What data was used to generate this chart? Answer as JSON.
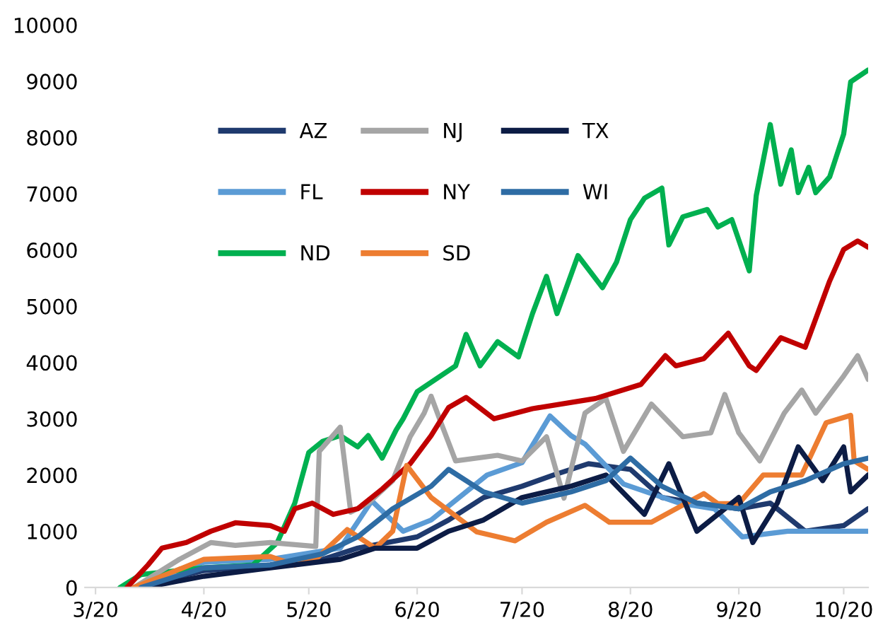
{
  "chart_data": {
    "type": "line",
    "xlim": [
      "2020-02-27",
      "2020-10-08"
    ],
    "ylim": [
      0,
      10000
    ],
    "xticks": [
      {
        "value": "2020-03-01",
        "label": "3/20"
      },
      {
        "value": "2020-04-01",
        "label": "4/20"
      },
      {
        "value": "2020-05-01",
        "label": "5/20"
      },
      {
        "value": "2020-06-01",
        "label": "6/20"
      },
      {
        "value": "2020-07-01",
        "label": "7/20"
      },
      {
        "value": "2020-08-01",
        "label": "8/20"
      },
      {
        "value": "2020-09-01",
        "label": "9/20"
      },
      {
        "value": "2020-10-01",
        "label": "10/20"
      }
    ],
    "yticks": [
      0,
      1000,
      2000,
      3000,
      4000,
      5000,
      6000,
      7000,
      8000,
      9000,
      10000
    ],
    "grid": false,
    "legend": "top left",
    "marker": "none",
    "line_style": "solid",
    "series": [
      {
        "name": "AZ",
        "color": "#1f3a6e",
        "x": [
          "2020-03-12",
          "2020-04-01",
          "2020-04-20",
          "2020-05-05",
          "2020-05-15",
          "2020-06-01",
          "2020-06-10",
          "2020-06-20",
          "2020-07-01",
          "2020-07-10",
          "2020-07-20",
          "2020-08-01",
          "2020-08-10",
          "2020-08-20",
          "2020-09-01",
          "2020-09-10",
          "2020-09-20",
          "2020-10-01",
          "2020-10-08"
        ],
        "values": [
          0,
          300,
          400,
          500,
          700,
          900,
          1200,
          1600,
          1800,
          2000,
          2200,
          2100,
          1600,
          1500,
          1400,
          1500,
          1000,
          1100,
          1400
        ]
      },
      {
        "name": "FL",
        "color": "#5b9bd5",
        "x": [
          "2020-03-12",
          "2020-04-01",
          "2020-04-20",
          "2020-05-10",
          "2020-05-19",
          "2020-05-28",
          "2020-06-05",
          "2020-06-21",
          "2020-07-01",
          "2020-07-09",
          "2020-07-15",
          "2020-07-19",
          "2020-07-30",
          "2020-08-15",
          "2020-08-25",
          "2020-09-02",
          "2020-09-15",
          "2020-10-01",
          "2020-10-08"
        ],
        "values": [
          0,
          450,
          500,
          700,
          1540,
          1000,
          1200,
          2000,
          2220,
          3050,
          2700,
          2550,
          1840,
          1500,
          1400,
          900,
          1000,
          1000,
          1000
        ]
      },
      {
        "name": "ND",
        "color": "#00b050",
        "x": [
          "2020-03-08",
          "2020-03-14",
          "2020-04-01",
          "2020-04-15",
          "2020-04-22",
          "2020-04-27",
          "2020-05-01",
          "2020-05-05",
          "2020-05-10",
          "2020-05-15",
          "2020-05-18",
          "2020-05-22",
          "2020-05-26",
          "2020-05-28",
          "2020-06-01",
          "2020-06-12",
          "2020-06-15",
          "2020-06-19",
          "2020-06-24",
          "2020-06-30",
          "2020-07-04",
          "2020-07-08",
          "2020-07-11",
          "2020-07-17",
          "2020-07-24",
          "2020-07-28",
          "2020-08-01",
          "2020-08-05",
          "2020-08-10",
          "2020-08-12",
          "2020-08-16",
          "2020-08-23",
          "2020-08-26",
          "2020-08-30",
          "2020-09-04",
          "2020-09-06",
          "2020-09-10",
          "2020-09-13",
          "2020-09-16",
          "2020-09-18",
          "2020-09-21",
          "2020-09-23",
          "2020-09-27",
          "2020-10-01",
          "2020-10-03",
          "2020-10-08"
        ],
        "values": [
          0,
          230,
          350,
          400,
          800,
          1500,
          2400,
          2600,
          2700,
          2500,
          2700,
          2300,
          2800,
          3000,
          3480,
          3940,
          4500,
          3940,
          4370,
          4100,
          4870,
          5530,
          4870,
          5900,
          5330,
          5780,
          6540,
          6920,
          7100,
          6090,
          6590,
          6720,
          6410,
          6540,
          5630,
          6970,
          8230,
          7170,
          7780,
          7020,
          7470,
          7020,
          7300,
          8060,
          8990,
          9200
        ]
      },
      {
        "name": "NJ",
        "color": "#a5a5a5",
        "x": [
          "2020-03-12",
          "2020-03-25",
          "2020-04-03",
          "2020-04-10",
          "2020-04-20",
          "2020-05-03",
          "2020-05-04",
          "2020-05-10",
          "2020-05-13",
          "2020-05-18",
          "2020-05-25",
          "2020-05-30",
          "2020-06-03",
          "2020-06-05",
          "2020-06-08",
          "2020-06-12",
          "2020-06-24",
          "2020-07-01",
          "2020-07-08",
          "2020-07-13",
          "2020-07-19",
          "2020-07-25",
          "2020-07-30",
          "2020-08-07",
          "2020-08-16",
          "2020-08-24",
          "2020-08-28",
          "2020-09-01",
          "2020-09-07",
          "2020-09-14",
          "2020-09-19",
          "2020-09-23",
          "2020-10-01",
          "2020-10-05",
          "2020-10-08"
        ],
        "values": [
          0,
          500,
          800,
          750,
          800,
          730,
          2420,
          2850,
          1340,
          1500,
          1900,
          2680,
          3100,
          3400,
          2900,
          2250,
          2350,
          2250,
          2680,
          1590,
          3100,
          3360,
          2420,
          3260,
          2680,
          2750,
          3430,
          2750,
          2250,
          3100,
          3510,
          3100,
          3760,
          4120,
          3700
        ]
      },
      {
        "name": "NY",
        "color": "#c00000",
        "x": [
          "2020-03-10",
          "2020-03-16",
          "2020-03-20",
          "2020-03-27",
          "2020-04-03",
          "2020-04-10",
          "2020-04-20",
          "2020-04-24",
          "2020-04-27",
          "2020-05-02",
          "2020-05-08",
          "2020-05-15",
          "2020-05-22",
          "2020-05-30",
          "2020-06-05",
          "2020-06-10",
          "2020-06-15",
          "2020-06-23",
          "2020-07-04",
          "2020-07-22",
          "2020-08-04",
          "2020-08-11",
          "2020-08-14",
          "2020-08-22",
          "2020-08-29",
          "2020-09-04",
          "2020-09-06",
          "2020-09-13",
          "2020-09-20",
          "2020-09-27",
          "2020-10-01",
          "2020-10-05",
          "2020-10-08"
        ],
        "values": [
          0,
          400,
          700,
          800,
          1000,
          1150,
          1100,
          1000,
          1400,
          1500,
          1300,
          1400,
          1750,
          2200,
          2700,
          3200,
          3380,
          3000,
          3180,
          3360,
          3610,
          4120,
          3940,
          4070,
          4520,
          3940,
          3860,
          4440,
          4270,
          5450,
          6010,
          6160,
          6050
        ]
      },
      {
        "name": "SD",
        "color": "#ed7d31",
        "x": [
          "2020-03-12",
          "2020-04-01",
          "2020-04-20",
          "2020-04-27",
          "2020-05-03",
          "2020-05-12",
          "2020-05-20",
          "2020-05-25",
          "2020-05-29",
          "2020-06-05",
          "2020-06-18",
          "2020-06-29",
          "2020-07-08",
          "2020-07-19",
          "2020-07-26",
          "2020-08-07",
          "2020-08-22",
          "2020-08-26",
          "2020-09-01",
          "2020-09-08",
          "2020-09-19",
          "2020-09-26",
          "2020-10-03",
          "2020-10-04",
          "2020-10-08"
        ],
        "values": [
          0,
          500,
          550,
          400,
          500,
          1030,
          700,
          1000,
          2170,
          1600,
          990,
          830,
          1160,
          1460,
          1160,
          1160,
          1670,
          1490,
          1490,
          2000,
          2000,
          2930,
          3060,
          2250,
          2100
        ]
      },
      {
        "name": "TX",
        "color": "#0c1c45",
        "x": [
          "2020-03-15",
          "2020-04-01",
          "2020-04-20",
          "2020-05-10",
          "2020-05-20",
          "2020-06-01",
          "2020-06-10",
          "2020-06-20",
          "2020-07-01",
          "2020-07-15",
          "2020-07-25",
          "2020-08-05",
          "2020-08-12",
          "2020-08-20",
          "2020-09-01",
          "2020-09-05",
          "2020-09-12",
          "2020-09-18",
          "2020-09-25",
          "2020-10-01",
          "2020-10-03",
          "2020-10-08"
        ],
        "values": [
          0,
          200,
          350,
          500,
          700,
          700,
          1000,
          1200,
          1600,
          1800,
          2000,
          1300,
          2200,
          1000,
          1600,
          800,
          1500,
          2500,
          1900,
          2500,
          1700,
          2000
        ]
      },
      {
        "name": "WI",
        "color": "#2e6ca4",
        "x": [
          "2020-03-14",
          "2020-04-01",
          "2020-04-20",
          "2020-05-05",
          "2020-05-15",
          "2020-05-25",
          "2020-06-05",
          "2020-06-10",
          "2020-06-20",
          "2020-07-01",
          "2020-07-15",
          "2020-07-25",
          "2020-08-01",
          "2020-08-10",
          "2020-08-20",
          "2020-09-01",
          "2020-09-10",
          "2020-09-20",
          "2020-10-01",
          "2020-10-08"
        ],
        "values": [
          0,
          350,
          400,
          600,
          900,
          1400,
          1800,
          2100,
          1700,
          1500,
          1700,
          1900,
          2300,
          1800,
          1500,
          1400,
          1700,
          1900,
          2200,
          2300
        ]
      }
    ]
  }
}
